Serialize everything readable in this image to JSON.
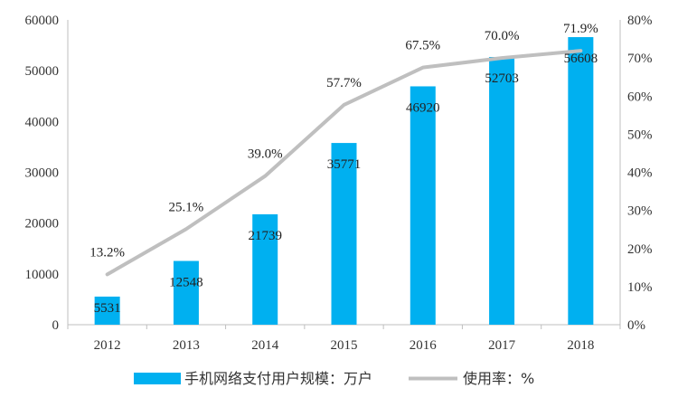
{
  "chart_data": {
    "type": "bar+line",
    "categories": [
      "2012",
      "2013",
      "2014",
      "2015",
      "2016",
      "2017",
      "2018"
    ],
    "series": [
      {
        "name": "手机网络支付用户规模：万户",
        "type": "bar",
        "axis": "left",
        "color": "#00b0f0",
        "values": [
          5531,
          12548,
          21739,
          35771,
          46920,
          52703,
          56608
        ],
        "labels": [
          "5531",
          "12548",
          "21739",
          "35771",
          "46920",
          "52703",
          "56608"
        ]
      },
      {
        "name": "使用率：%",
        "type": "line",
        "axis": "right",
        "color": "#bfbfbf",
        "values": [
          13.2,
          25.1,
          39.0,
          57.7,
          67.5,
          70.0,
          71.9
        ],
        "labels": [
          "13.2%",
          "25.1%",
          "39.0%",
          "57.7%",
          "67.5%",
          "70.0%",
          "71.9%"
        ]
      }
    ],
    "y_left": {
      "range": [
        0,
        60000
      ],
      "ticks": [
        0,
        10000,
        20000,
        30000,
        40000,
        50000,
        60000
      ],
      "tick_labels": [
        "0",
        "10000",
        "20000",
        "30000",
        "40000",
        "50000",
        "60000"
      ]
    },
    "y_right": {
      "range": [
        0,
        80
      ],
      "ticks": [
        0,
        10,
        20,
        30,
        40,
        50,
        60,
        70,
        80
      ],
      "tick_labels": [
        "0%",
        "10%",
        "20%",
        "30%",
        "40%",
        "50%",
        "60%",
        "70%",
        "80%"
      ]
    },
    "grid": false,
    "legend": "bottom"
  }
}
